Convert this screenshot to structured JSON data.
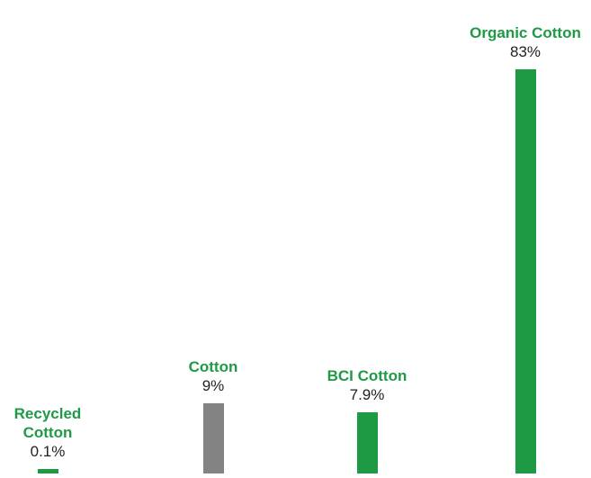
{
  "chart_data": {
    "type": "bar",
    "categories": [
      "Recycled Cotton",
      "Cotton",
      "BCI Cotton",
      "Organic Cotton"
    ],
    "category_lines": [
      [
        "Recycled",
        "Cotton"
      ],
      [
        "Cotton"
      ],
      [
        "BCI Cotton"
      ],
      [
        "Organic Cotton"
      ]
    ],
    "values": [
      0.1,
      9,
      7.9,
      83
    ],
    "value_labels": [
      "0.1%",
      "9%",
      "7.9%",
      "83%"
    ],
    "unit": "%",
    "ylim": [
      0,
      83
    ],
    "colors": [
      "#1f9a44",
      "#838383",
      "#1f9a44",
      "#1f9a44"
    ],
    "grid": false,
    "legend": "none"
  }
}
